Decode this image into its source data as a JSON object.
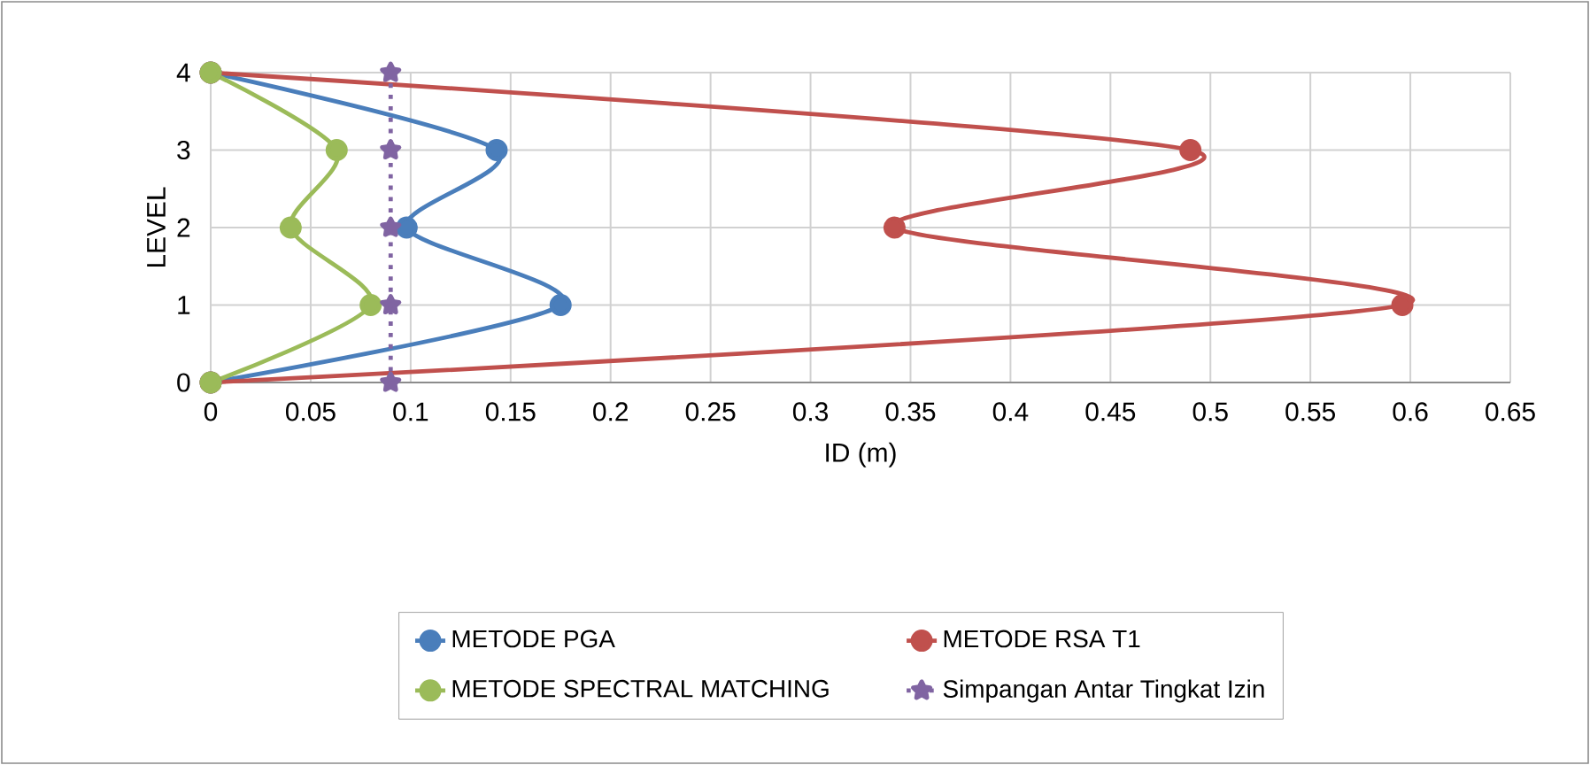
{
  "chart_data": {
    "type": "line",
    "xlabel": "ID (m)",
    "ylabel": "LEVEL",
    "xlim": [
      0,
      0.65
    ],
    "ylim": [
      0,
      4
    ],
    "xticks": [
      0,
      0.05,
      0.1,
      0.15,
      0.2,
      0.25,
      0.3,
      0.35,
      0.4,
      0.45,
      0.5,
      0.55,
      0.6,
      0.65
    ],
    "yticks": [
      0,
      1,
      2,
      3,
      4
    ],
    "grid": true,
    "legend": "bottom",
    "marker": "circle",
    "series": [
      {
        "name": "METODE PGA",
        "color": "#4a7ebb",
        "x": [
          0,
          0.175,
          0.098,
          0.143,
          0
        ],
        "values": [
          0,
          1,
          2,
          3,
          4
        ]
      },
      {
        "name": "METODE RSA T1",
        "color": "#c0504d",
        "x": [
          0,
          0.596,
          0.342,
          0.49,
          0
        ],
        "values": [
          0,
          1,
          2,
          3,
          4
        ]
      },
      {
        "name": "METODE SPECTRAL MATCHING",
        "color": "#9bbb59",
        "x": [
          0,
          0.08,
          0.04,
          0.063,
          0
        ],
        "values": [
          0,
          1,
          2,
          3,
          4
        ]
      },
      {
        "name": "Simpangan Antar Tingkat Izin",
        "color": "#8064a2",
        "x": [
          0.09,
          0.09,
          0.09,
          0.09,
          0.09
        ],
        "values": [
          0,
          1,
          2,
          3,
          4
        ],
        "marker": "star",
        "line_style": "dotted"
      }
    ]
  }
}
